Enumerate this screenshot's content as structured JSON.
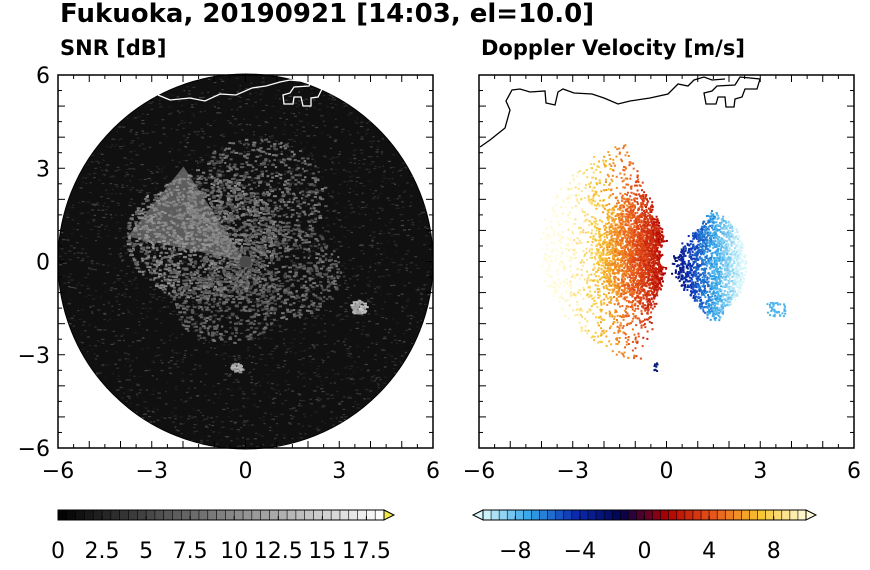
{
  "title": "Fukuoka, 20190921 [14:03, el=10.0]",
  "chart_data": [
    {
      "type": "heatmap",
      "panel_title": "SNR [dB]",
      "xlim": [
        -6,
        6
      ],
      "ylim": [
        -6,
        6
      ],
      "x_ticks": [
        -6,
        -3,
        0,
        3,
        6
      ],
      "y_ticks": [
        -6,
        -3,
        0,
        3,
        6
      ],
      "x_tick_labels": [
        "−6",
        "−3",
        "0",
        "3",
        "6"
      ],
      "y_tick_labels": [
        "−6",
        "−3",
        "0",
        "3",
        "6"
      ],
      "radar_range": 6,
      "colorbar": {
        "min": 0,
        "max": 18.5,
        "colors": [
          "#000000",
          "#ffffff"
        ],
        "extend": "max",
        "extend_color": "#f3e84a",
        "tick_values": [
          0,
          2.5,
          5,
          7.5,
          10,
          12.5,
          15,
          17.5
        ],
        "tick_labels": [
          "0",
          "2.5",
          "5",
          "7.5",
          "10",
          "12.5",
          "15",
          "17.5"
        ]
      }
    },
    {
      "type": "heatmap",
      "panel_title": "Doppler Velocity [m/s]",
      "xlim": [
        -6,
        6
      ],
      "ylim": [
        -6,
        6
      ],
      "x_ticks": [
        -6,
        -3,
        0,
        3,
        6
      ],
      "y_ticks": [
        -6,
        -3,
        0,
        3,
        6
      ],
      "x_tick_labels": [
        "−6",
        "−3",
        "0",
        "3",
        "6"
      ],
      "colorbar": {
        "min": -10,
        "max": 10,
        "colors": [
          "#d8f7fb",
          "#34a6e8",
          "#0a2cb0",
          "#02024f",
          "#b00000",
          "#e8581c",
          "#f7c52e",
          "#fffbd8"
        ],
        "extend": "both",
        "tick_values": [
          -8,
          -4,
          0,
          4,
          8
        ],
        "tick_labels": [
          "−8",
          "−4",
          "0",
          "4",
          "8"
        ]
      }
    }
  ]
}
